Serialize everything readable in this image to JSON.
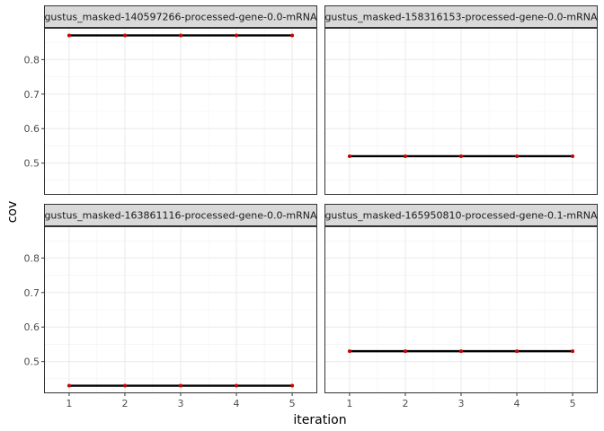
{
  "chart_data": {
    "type": "line",
    "xlabel": "iteration",
    "ylabel": "cov",
    "x_ticks": [
      1,
      2,
      3,
      4,
      5
    ],
    "y_ticks": [
      0.5,
      0.6,
      0.7,
      0.8
    ],
    "y_tick_labels": [
      "0.5",
      "0.6",
      "0.7",
      "0.8"
    ],
    "x_tick_labels": [
      "1",
      "2",
      "3",
      "4",
      "5"
    ],
    "xlim": [
      0.55,
      5.45
    ],
    "ylim": [
      0.408,
      0.892
    ],
    "grid": true,
    "line_color": "#000000",
    "point_color": "#cc0000",
    "strip_fill": "#d9d9d9",
    "panels": [
      {
        "title": "gustus_masked-140597266-processed-gene-0.0-mRNA",
        "x": [
          1,
          2,
          3,
          4,
          5
        ],
        "values": [
          0.87,
          0.87,
          0.87,
          0.87,
          0.87
        ]
      },
      {
        "title": "gustus_masked-158316153-processed-gene-0.0-mRNA",
        "x": [
          1,
          2,
          3,
          4,
          5
        ],
        "values": [
          0.52,
          0.52,
          0.52,
          0.52,
          0.52
        ]
      },
      {
        "title": "gustus_masked-163861116-processed-gene-0.0-mRNA",
        "x": [
          1,
          2,
          3,
          4,
          5
        ],
        "values": [
          0.43,
          0.43,
          0.43,
          0.43,
          0.43
        ]
      },
      {
        "title": "gustus_masked-165950810-processed-gene-0.1-mRNA",
        "x": [
          1,
          2,
          3,
          4,
          5
        ],
        "values": [
          0.53,
          0.53,
          0.53,
          0.53,
          0.53
        ]
      }
    ]
  }
}
